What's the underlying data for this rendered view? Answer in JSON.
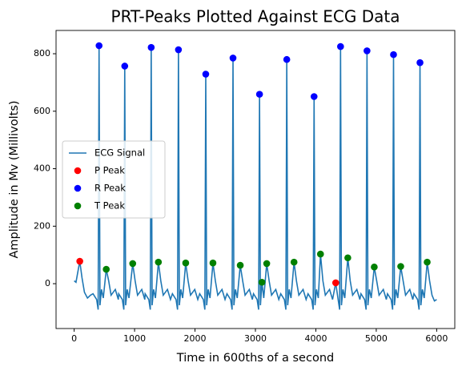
{
  "chart_data": {
    "type": "line",
    "title": "PRT-Peaks Plotted Against ECG Data",
    "xlabel": "Time in 600ths of a second",
    "ylabel": "Amplitude in Mv (Millivolts)",
    "xlim": [
      -300,
      6300
    ],
    "xticks": [
      0,
      1000,
      2000,
      3000,
      4000,
      5000,
      6000
    ],
    "ylim": [
      -156,
      881
    ],
    "yticks": [
      0,
      200,
      400,
      600,
      800
    ],
    "grid": false,
    "legend": "center left",
    "series": [
      {
        "name": "ECG Signal",
        "color": "#1f77b4",
        "style": "line",
        "x": [
          0,
          30,
          60,
          93,
          130,
          170,
          220,
          270,
          312,
          372,
          397,
          412,
          427,
          452,
          482,
          531,
          571,
          611,
          681,
          731,
          737,
          797,
          822,
          837,
          852,
          877,
          907,
          969,
          1009,
          1049,
          1119,
          1169,
          1175,
          1235,
          1260,
          1275,
          1290,
          1315,
          1345,
          1394,
          1434,
          1474,
          1544,
          1594,
          1626,
          1686,
          1711,
          1726,
          1741,
          1766,
          1796,
          1846,
          1886,
          1926,
          1996,
          2046,
          2078,
          2138,
          2163,
          2178,
          2193,
          2218,
          2248,
          2297,
          2337,
          2377,
          2447,
          2497,
          2529,
          2589,
          2614,
          2629,
          2644,
          2669,
          2699,
          2749,
          2789,
          2829,
          2899,
          2949,
          2968,
          3028,
          3053,
          3068,
          3083,
          3108,
          3138,
          3187,
          3227,
          3267,
          3337,
          3387,
          3419,
          3479,
          3504,
          3519,
          3534,
          3559,
          3589,
          3639,
          3679,
          3719,
          3789,
          3839,
          3871,
          3931,
          3956,
          3971,
          3986,
          4011,
          4041,
          4077,
          4117,
          4157,
          4227,
          4277,
          4329,
          4369,
          4394,
          4409,
          4424,
          4449,
          4479,
          4529,
          4569,
          4609,
          4679,
          4729,
          4747,
          4807,
          4832,
          4847,
          4862,
          4887,
          4917,
          4967,
          5007,
          5047,
          5117,
          5167,
          5186,
          5246,
          5271,
          5286,
          5301,
          5326,
          5356,
          5405,
          5445,
          5485,
          5555,
          5605,
          5624,
          5684,
          5709,
          5724,
          5739,
          5764,
          5794,
          5843,
          5883,
          5923,
          5963,
          6000
        ],
        "values": [
          10,
          5,
          40,
          78,
          20,
          -30,
          -50,
          -40,
          -35,
          -55,
          -90,
          828,
          -75,
          -20,
          -50,
          50,
          10,
          -40,
          -20,
          -55,
          -35,
          -55,
          -90,
          757,
          -75,
          -20,
          -50,
          70,
          10,
          -40,
          -20,
          -55,
          -35,
          -55,
          -90,
          822,
          -75,
          -20,
          -50,
          75,
          10,
          -40,
          -20,
          -55,
          -35,
          -55,
          -90,
          814,
          -75,
          -20,
          -50,
          72,
          10,
          -40,
          -20,
          -55,
          -35,
          -55,
          -90,
          729,
          -75,
          -20,
          -50,
          72,
          10,
          -40,
          -20,
          -55,
          -35,
          -55,
          -90,
          785,
          -75,
          -20,
          -50,
          64,
          10,
          -40,
          -20,
          -55,
          -35,
          -55,
          -90,
          659,
          -75,
          5,
          -50,
          70,
          10,
          -40,
          -20,
          -55,
          -35,
          -55,
          -90,
          780,
          -75,
          -20,
          -50,
          75,
          10,
          -40,
          -20,
          -55,
          -35,
          -55,
          -90,
          651,
          -75,
          -20,
          -50,
          103,
          10,
          -40,
          -20,
          -55,
          3,
          -55,
          -90,
          825,
          -75,
          -20,
          -50,
          90,
          10,
          -40,
          -20,
          -55,
          -35,
          -55,
          -90,
          810,
          -75,
          -20,
          -50,
          58,
          10,
          -40,
          -20,
          -55,
          -35,
          -55,
          -90,
          797,
          -75,
          -20,
          -50,
          60,
          10,
          -40,
          -20,
          -55,
          -35,
          -55,
          -90,
          769,
          -75,
          -20,
          -50,
          75,
          10,
          -40,
          -60,
          -55
        ]
      },
      {
        "name": "P Peak",
        "color": "#ff0000",
        "style": "points",
        "x": [
          93,
          4329
        ],
        "values": [
          78,
          3
        ]
      },
      {
        "name": "R Peak",
        "color": "#0000ff",
        "style": "points",
        "x": [
          412,
          837,
          1275,
          1726,
          2178,
          2629,
          3068,
          3519,
          3971,
          4409,
          4847,
          5286,
          5724
        ],
        "values": [
          828,
          757,
          822,
          814,
          729,
          785,
          659,
          780,
          651,
          825,
          810,
          797,
          769
        ]
      },
      {
        "name": "T Peak",
        "color": "#008000",
        "style": "points",
        "x": [
          531,
          969,
          1394,
          1846,
          2297,
          2749,
          3108,
          3187,
          3639,
          4077,
          4529,
          4967,
          5405,
          5843
        ],
        "values": [
          50,
          70,
          75,
          72,
          72,
          64,
          5,
          70,
          75,
          103,
          90,
          58,
          60,
          75
        ]
      }
    ]
  }
}
